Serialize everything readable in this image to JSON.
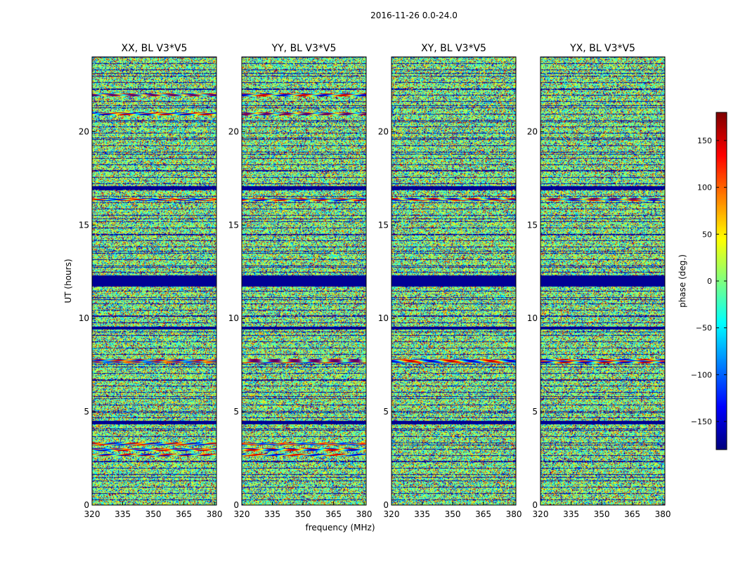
{
  "chart_data": {
    "type": "heatmap",
    "suptitle": "2016-11-26 0.0-24.0",
    "xlabel": "frequency (MHz)",
    "ylabel": "UT (hours)",
    "xlim": [
      320,
      381
    ],
    "ylim": [
      0,
      24
    ],
    "xticks": [
      320,
      335,
      350,
      365,
      380
    ],
    "yticks": [
      0,
      5,
      10,
      15,
      20
    ],
    "panels": [
      {
        "title": "XX, BL V3*V5",
        "polarization": "XX"
      },
      {
        "title": "YY, BL V3*V5",
        "polarization": "YY"
      },
      {
        "title": "XY, BL V3*V5",
        "polarization": "XY"
      },
      {
        "title": "YX, BL V3*V5",
        "polarization": "YX"
      }
    ],
    "colorbar": {
      "label": "phase (deg.)",
      "colormap": "jet",
      "vmin": -180,
      "vmax": 180,
      "ticks": [
        -150,
        -100,
        -50,
        0,
        50,
        100,
        150
      ],
      "tick_labels": [
        "−150",
        "−100",
        "−50",
        "0",
        "50",
        "100",
        "150"
      ]
    },
    "flagged_bands_hours": [
      [
        11.7,
        12.3
      ],
      [
        4.3,
        4.5
      ],
      [
        16.9,
        17.1
      ],
      [
        9.4,
        9.55
      ]
    ],
    "smooth_bands_hours": {
      "XX": [
        [
          2.6,
          2.75
        ],
        [
          2.9,
          3.05
        ],
        [
          3.2,
          3.35
        ],
        [
          7.6,
          7.8
        ],
        [
          16.3,
          16.45
        ],
        [
          20.9,
          21.05
        ],
        [
          21.9,
          22.05
        ]
      ],
      "YY": [
        [
          2.6,
          2.75
        ],
        [
          2.9,
          3.05
        ],
        [
          3.2,
          3.35
        ],
        [
          7.6,
          7.8
        ],
        [
          16.3,
          16.45
        ],
        [
          20.9,
          21.05
        ],
        [
          21.9,
          22.05
        ]
      ],
      "XY": [
        [
          7.6,
          7.8
        ],
        [
          16.3,
          16.45
        ]
      ],
      "YX": [
        [
          7.6,
          7.8
        ],
        [
          16.3,
          16.45
        ]
      ]
    }
  }
}
